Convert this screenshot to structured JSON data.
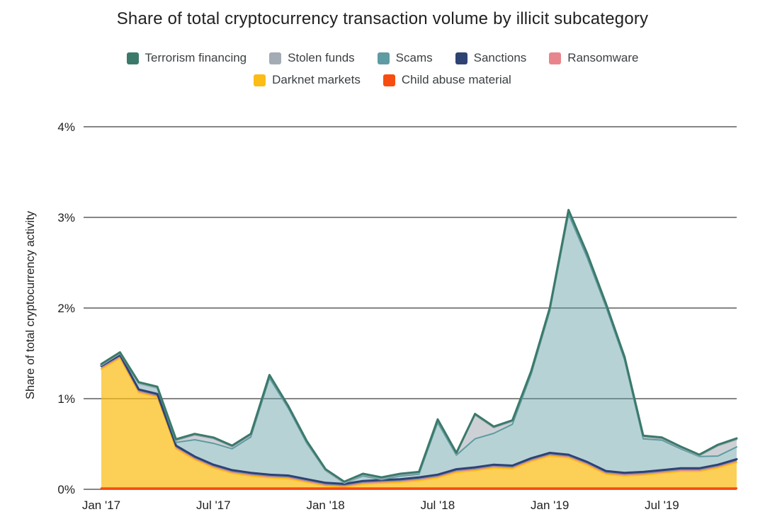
{
  "title": "Share of total cryptocurrency transaction volume by illicit subcategory",
  "legend": {
    "rows": [
      [
        {
          "label": "Terrorism financing",
          "color": "#3b7a6a"
        },
        {
          "label": "Stolen funds",
          "color": "#a4abb5"
        },
        {
          "label": "Scams",
          "color": "#5f9ba2"
        },
        {
          "label": "Sanctions",
          "color": "#2e4372"
        },
        {
          "label": "Ransomware",
          "color": "#e8858c"
        }
      ],
      [
        {
          "label": "Darknet markets",
          "color": "#fbbc16"
        },
        {
          "label": "Child abuse material",
          "color": "#f84d10"
        }
      ]
    ]
  },
  "y_axis": {
    "title": "Share of total cryptocurrency activity",
    "tick_labels": [
      "0%",
      "1%",
      "2%",
      "3%",
      "4%"
    ],
    "tick_values": [
      0,
      1,
      2,
      3,
      4
    ]
  },
  "x_axis": {
    "tick_labels": [
      "Jan '17",
      "Jul '17",
      "Jan '18",
      "Jul '18",
      "Jan '19",
      "Jul '19"
    ],
    "tick_indices": [
      0,
      6,
      12,
      18,
      24,
      30
    ]
  },
  "chart_data": {
    "type": "area",
    "stacked": true,
    "title": "Share of total cryptocurrency transaction volume by illicit subcategory",
    "ylabel": "Share of total cryptocurrency activity",
    "ylim": [
      0,
      4
    ],
    "grid": true,
    "legend_position": "top-center",
    "x_unit": "month",
    "x_start": "Jan 2017",
    "x_end": "Nov 2019",
    "x_tick_labels": [
      "Jan '17",
      "Jul '17",
      "Jan '18",
      "Jul '18",
      "Jan '19",
      "Jul '19"
    ],
    "x_tick_indices": [
      0,
      6,
      12,
      18,
      24,
      30
    ],
    "stack_order_note": "series listed bottom to top",
    "series": [
      {
        "name": "Child abuse material",
        "stroke": "#f84d10",
        "stroke_width": 2.5,
        "fill": "rgba(248,77,16,0.85)",
        "values": [
          0.012,
          0.012,
          0.012,
          0.012,
          0.012,
          0.012,
          0.012,
          0.012,
          0.012,
          0.012,
          0.012,
          0.012,
          0.012,
          0.012,
          0.012,
          0.012,
          0.012,
          0.012,
          0.012,
          0.012,
          0.012,
          0.012,
          0.012,
          0.012,
          0.012,
          0.012,
          0.012,
          0.012,
          0.012,
          0.012,
          0.012,
          0.012,
          0.012,
          0.012,
          0.012
        ]
      },
      {
        "name": "Darknet markets",
        "stroke": "#fbbc16",
        "stroke_width": 2,
        "fill": "rgba(251,188,22,0.72)",
        "values": [
          1.315,
          1.435,
          1.055,
          1.005,
          0.435,
          0.315,
          0.225,
          0.165,
          0.135,
          0.115,
          0.105,
          0.065,
          0.025,
          0.012,
          0.045,
          0.055,
          0.065,
          0.085,
          0.115,
          0.175,
          0.195,
          0.225,
          0.215,
          0.295,
          0.355,
          0.335,
          0.255,
          0.155,
          0.135,
          0.145,
          0.165,
          0.185,
          0.185,
          0.225,
          0.285
        ]
      },
      {
        "name": "Ransomware",
        "stroke": "#e8858c",
        "stroke_width": 1,
        "fill": "rgba(232,133,140,0.7)",
        "values": [
          0.01,
          0.01,
          0.01,
          0.01,
          0.01,
          0.01,
          0.01,
          0.01,
          0.01,
          0.01,
          0.01,
          0.01,
          0.01,
          0.01,
          0.01,
          0.01,
          0.01,
          0.01,
          0.01,
          0.01,
          0.01,
          0.01,
          0.01,
          0.01,
          0.01,
          0.01,
          0.01,
          0.01,
          0.01,
          0.01,
          0.01,
          0.01,
          0.01,
          0.01,
          0.01
        ]
      },
      {
        "name": "Sanctions",
        "stroke": "#2e4372",
        "stroke_width": 3,
        "fill": "rgba(46,67,114,0.6)",
        "values": [
          0.025,
          0.025,
          0.025,
          0.025,
          0.025,
          0.025,
          0.025,
          0.025,
          0.025,
          0.025,
          0.025,
          0.025,
          0.025,
          0.025,
          0.025,
          0.025,
          0.025,
          0.025,
          0.025,
          0.025,
          0.025,
          0.025,
          0.025,
          0.025,
          0.025,
          0.025,
          0.025,
          0.025,
          0.025,
          0.025,
          0.025,
          0.025,
          0.025,
          0.025,
          0.025
        ]
      },
      {
        "name": "Scams",
        "stroke": "#5f9ba2",
        "stroke_width": 2,
        "fill": "rgba(95,155,162,0.45)",
        "values": [
          0.005,
          0.015,
          0.065,
          0.065,
          0.035,
          0.185,
          0.235,
          0.235,
          0.395,
          1.065,
          0.745,
          0.395,
          0.135,
          0.01,
          0.055,
          0.005,
          0.035,
          0.035,
          0.575,
          0.155,
          0.315,
          0.345,
          0.455,
          0.925,
          1.565,
          2.655,
          2.255,
          1.815,
          1.245,
          0.365,
          0.33,
          0.215,
          0.13,
          0.095,
          0.135
        ]
      },
      {
        "name": "Stolen funds",
        "stroke": "#a4abb5",
        "stroke_width": 1.5,
        "fill": "rgba(164,171,181,0.55)",
        "values": [
          0,
          0,
          0,
          0,
          0.02,
          0.05,
          0.05,
          0.02,
          0.02,
          0.02,
          0.01,
          0.01,
          0,
          0,
          0.01,
          0.01,
          0.01,
          0.01,
          0.02,
          0.01,
          0.26,
          0.06,
          0.03,
          0.02,
          0.02,
          0.03,
          0.03,
          0.02,
          0.02,
          0.02,
          0.015,
          0.01,
          0.005,
          0.11,
          0.08
        ]
      },
      {
        "name": "Terrorism financing",
        "stroke": "#3b7a6a",
        "stroke_width": 3,
        "fill": "rgba(61,122,106,0.5)",
        "values": [
          0.015,
          0.015,
          0.015,
          0.015,
          0.015,
          0.015,
          0.015,
          0.015,
          0.015,
          0.015,
          0.015,
          0.015,
          0.015,
          0.015,
          0.015,
          0.015,
          0.015,
          0.015,
          0.015,
          0.015,
          0.015,
          0.015,
          0.015,
          0.015,
          0.015,
          0.015,
          0.015,
          0.015,
          0.015,
          0.015,
          0.015,
          0.015,
          0.015,
          0.015,
          0.015
        ]
      }
    ],
    "peak_annotations_note": "totals: Feb 2017 ~1.5%, Oct 2017 ~1.26%, Feb 2018 ~0.08%, Jul 2018 ~0.77%, Sep 2018 ~0.83%, Feb 2019 ~3.08%, Nov 2019 ~0.56%",
    "grid_color": "#3c3c3c",
    "text_color": "#212121"
  }
}
